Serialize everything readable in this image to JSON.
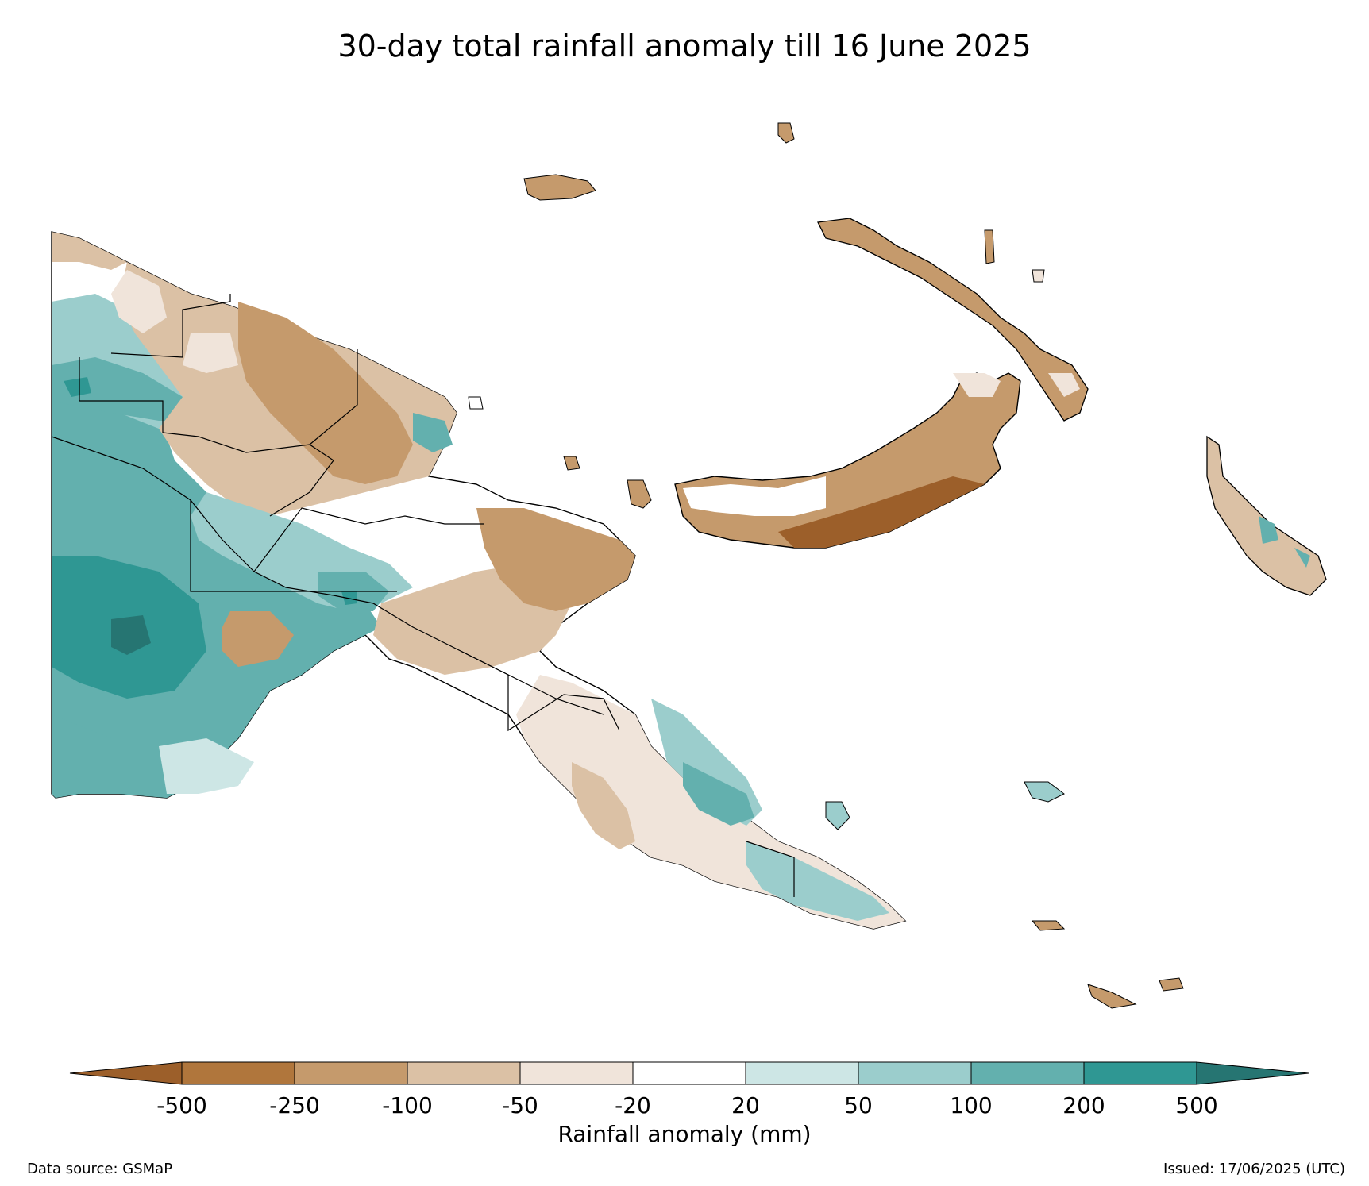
{
  "title": "30-day total rainfall anomaly till 16 June 2025",
  "legend": {
    "label": "Rainfall anomaly (mm)",
    "ticks": [
      "-500",
      "-250",
      "-100",
      "-50",
      "-20",
      "20",
      "50",
      "100",
      "200",
      "500"
    ],
    "colors": [
      "#9c5f2a",
      "#b0763c",
      "#c59a6c",
      "#dbc1a5",
      "#f0e4da",
      "#ffffff",
      "#cde6e5",
      "#9bcdcc",
      "#63b0ae",
      "#2f9793",
      "#267572"
    ],
    "extend": "both"
  },
  "footer": {
    "source": "Data source: GSMaP",
    "issued": "Issued: 17/06/2025 (UTC)"
  },
  "map": {
    "region": "Papua New Guinea",
    "feature_classes": [
      "coastline",
      "provincial-boundaries",
      "filled-contours"
    ]
  }
}
